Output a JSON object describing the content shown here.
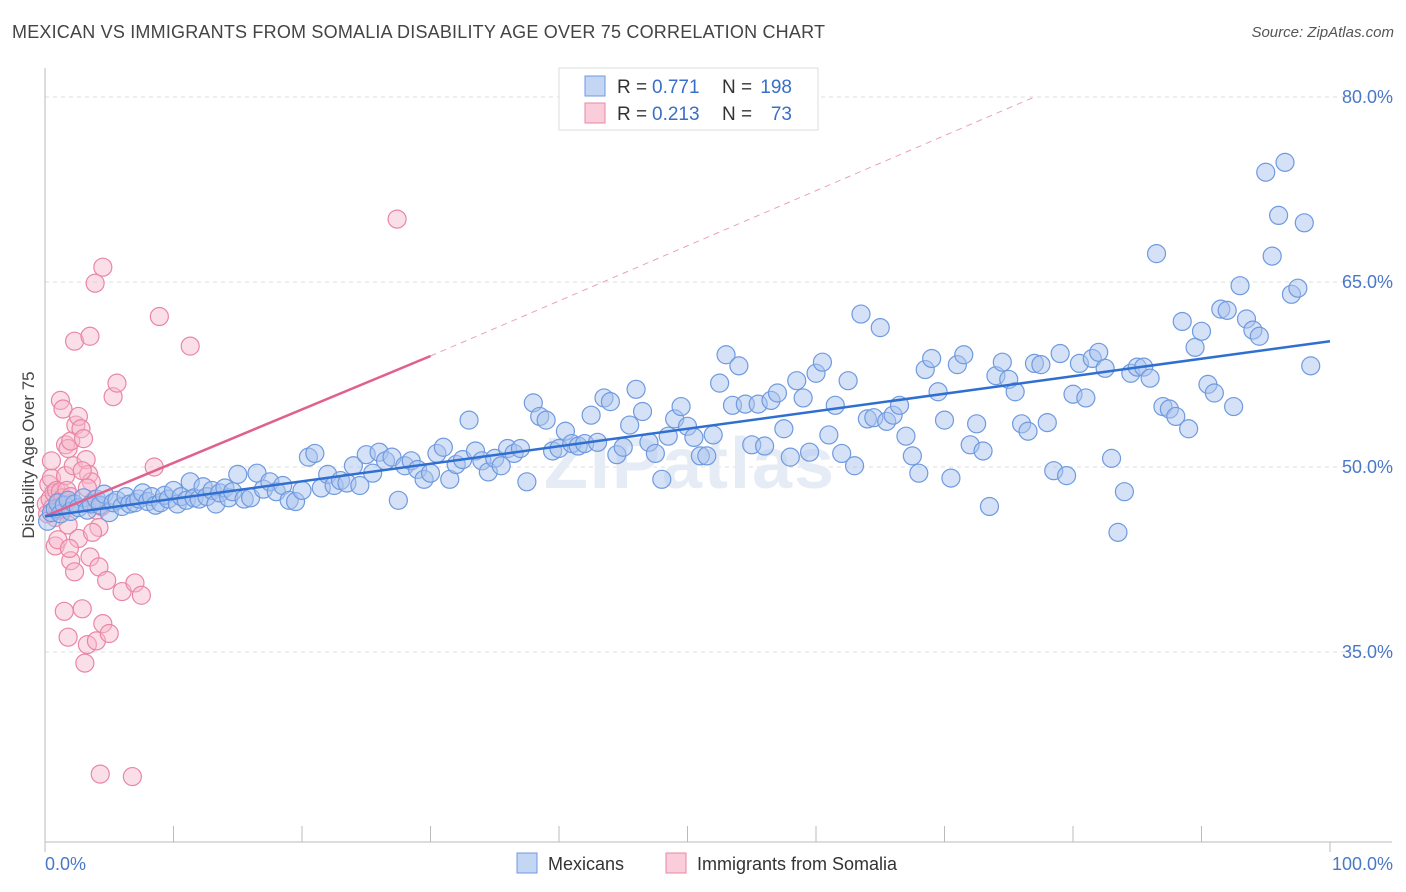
{
  "title": "MEXICAN VS IMMIGRANTS FROM SOMALIA DISABILITY AGE OVER 75 CORRELATION CHART",
  "source": "Source: ZipAtlas.com",
  "watermark": "ZIPatlas",
  "colors": {
    "mexicans_fill": "#aac4ee",
    "mexicans_stroke": "#6f9ae0",
    "mexicans_line": "#2f6fd0",
    "somalia_fill": "#f6b8cb",
    "somalia_stroke": "#ea86a5",
    "somalia_line": "#e06090",
    "axis_label": "#4a78c8",
    "grid": "#dddddd"
  },
  "legend": {
    "r_label": "R =",
    "n_label": "N =",
    "rows": [
      {
        "r": "0.771",
        "n": "198"
      },
      {
        "r": "0.213",
        "n": "73"
      }
    ]
  },
  "chart_data": {
    "type": "scatter",
    "title": "MEXICAN VS IMMIGRANTS FROM SOMALIA DISABILITY AGE OVER 75 CORRELATION CHART",
    "xlabel": "",
    "ylabel": "Disability Age Over 75",
    "xlim": [
      0,
      100
    ],
    "ylim": [
      20,
      84
    ],
    "x_tick_labels": [
      "0.0%",
      "100.0%"
    ],
    "y_ticks": [
      35,
      50,
      65,
      80
    ],
    "y_tick_labels": [
      "35.0%",
      "50.0%",
      "65.0%",
      "80.0%"
    ],
    "grid": true,
    "legend_position": "top-center",
    "series": [
      {
        "name": "Mexicans",
        "r": 0.771,
        "n": 198,
        "trend": {
          "x": [
            0,
            100
          ],
          "y": [
            46.0,
            60.2
          ]
        },
        "points": [
          [
            0.2,
            45.6
          ],
          [
            0.5,
            46.3
          ],
          [
            0.8,
            46.6
          ],
          [
            1.0,
            47.1
          ],
          [
            1.2,
            46.2
          ],
          [
            1.5,
            46.9
          ],
          [
            1.8,
            47.3
          ],
          [
            2.0,
            46.4
          ],
          [
            2.3,
            47.0
          ],
          [
            2.6,
            46.7
          ],
          [
            3.0,
            47.5
          ],
          [
            3.3,
            46.5
          ],
          [
            3.6,
            47.0
          ],
          [
            4.0,
            47.4
          ],
          [
            4.3,
            46.9
          ],
          [
            4.6,
            47.8
          ],
          [
            5.0,
            46.3
          ],
          [
            5.3,
            47.1
          ],
          [
            5.6,
            47.3
          ],
          [
            6.0,
            46.8
          ],
          [
            6.3,
            47.6
          ],
          [
            6.6,
            47.0
          ],
          [
            7.0,
            47.1
          ],
          [
            7.3,
            47.4
          ],
          [
            7.6,
            47.9
          ],
          [
            8.0,
            47.2
          ],
          [
            8.3,
            47.6
          ],
          [
            8.6,
            46.9
          ],
          [
            9.0,
            47.1
          ],
          [
            9.3,
            47.7
          ],
          [
            9.6,
            47.4
          ],
          [
            10.0,
            48.1
          ],
          [
            10.3,
            47.0
          ],
          [
            10.6,
            47.6
          ],
          [
            11.0,
            47.3
          ],
          [
            11.3,
            48.8
          ],
          [
            11.6,
            47.5
          ],
          [
            12.0,
            47.4
          ],
          [
            12.3,
            48.4
          ],
          [
            12.6,
            47.6
          ],
          [
            13.0,
            48.1
          ],
          [
            13.3,
            47.0
          ],
          [
            13.6,
            47.9
          ],
          [
            14.0,
            48.3
          ],
          [
            14.3,
            47.5
          ],
          [
            14.6,
            48.0
          ],
          [
            15.0,
            49.4
          ],
          [
            15.5,
            47.4
          ],
          [
            16.0,
            47.5
          ],
          [
            16.5,
            49.5
          ],
          [
            17.0,
            48.2
          ],
          [
            17.5,
            48.8
          ],
          [
            18.0,
            48.0
          ],
          [
            18.5,
            48.5
          ],
          [
            19.0,
            47.3
          ],
          [
            19.5,
            47.2
          ],
          [
            20.0,
            48.1
          ],
          [
            20.5,
            50.8
          ],
          [
            21.0,
            51.1
          ],
          [
            21.5,
            48.3
          ],
          [
            22.0,
            49.4
          ],
          [
            22.5,
            48.5
          ],
          [
            23.0,
            48.9
          ],
          [
            23.5,
            48.7
          ],
          [
            24.0,
            50.1
          ],
          [
            24.5,
            48.5
          ],
          [
            25.0,
            51.0
          ],
          [
            25.5,
            49.5
          ],
          [
            26.0,
            51.2
          ],
          [
            26.5,
            50.5
          ],
          [
            27.0,
            50.8
          ],
          [
            27.5,
            47.3
          ],
          [
            28.0,
            50.1
          ],
          [
            28.5,
            50.5
          ],
          [
            29.0,
            49.8
          ],
          [
            29.5,
            49.0
          ],
          [
            30.0,
            49.5
          ],
          [
            30.5,
            51.1
          ],
          [
            31.0,
            51.6
          ],
          [
            31.5,
            49.0
          ],
          [
            32.0,
            50.2
          ],
          [
            32.5,
            50.6
          ],
          [
            33.0,
            53.8
          ],
          [
            33.5,
            51.3
          ],
          [
            34.0,
            50.5
          ],
          [
            34.5,
            49.6
          ],
          [
            35.0,
            50.7
          ],
          [
            35.5,
            50.1
          ],
          [
            36.0,
            51.5
          ],
          [
            36.5,
            51.1
          ],
          [
            37.0,
            51.5
          ],
          [
            37.5,
            48.8
          ],
          [
            38.0,
            55.2
          ],
          [
            38.5,
            54.1
          ],
          [
            39.0,
            53.8
          ],
          [
            39.5,
            51.3
          ],
          [
            40.0,
            51.5
          ],
          [
            40.5,
            52.9
          ],
          [
            41.0,
            51.9
          ],
          [
            41.5,
            51.7
          ],
          [
            42.0,
            51.9
          ],
          [
            42.5,
            54.2
          ],
          [
            43.0,
            52.0
          ],
          [
            43.5,
            55.6
          ],
          [
            44.0,
            55.3
          ],
          [
            44.5,
            51.0
          ],
          [
            45.0,
            51.6
          ],
          [
            45.5,
            53.4
          ],
          [
            46.0,
            56.3
          ],
          [
            46.5,
            54.5
          ],
          [
            47.0,
            52.0
          ],
          [
            47.5,
            51.1
          ],
          [
            48.0,
            49.0
          ],
          [
            48.5,
            52.5
          ],
          [
            49.0,
            53.9
          ],
          [
            49.5,
            54.9
          ],
          [
            50.0,
            53.3
          ],
          [
            50.5,
            52.4
          ],
          [
            51.0,
            50.9
          ],
          [
            51.5,
            50.9
          ],
          [
            52.0,
            52.6
          ],
          [
            52.5,
            56.8
          ],
          [
            53.0,
            59.1
          ],
          [
            53.5,
            55.0
          ],
          [
            54.0,
            58.2
          ],
          [
            54.5,
            55.1
          ],
          [
            55.0,
            51.8
          ],
          [
            55.5,
            55.1
          ],
          [
            56.0,
            51.7
          ],
          [
            56.5,
            55.4
          ],
          [
            57.0,
            56.0
          ],
          [
            57.5,
            53.1
          ],
          [
            58.0,
            50.8
          ],
          [
            58.5,
            57.0
          ],
          [
            59.0,
            55.6
          ],
          [
            59.5,
            51.2
          ],
          [
            60.0,
            57.6
          ],
          [
            60.5,
            58.5
          ],
          [
            61.0,
            52.6
          ],
          [
            61.5,
            55.0
          ],
          [
            62.0,
            51.1
          ],
          [
            62.5,
            57.0
          ],
          [
            63.0,
            50.1
          ],
          [
            63.5,
            62.4
          ],
          [
            64.0,
            53.9
          ],
          [
            64.5,
            54.0
          ],
          [
            65.0,
            61.3
          ],
          [
            65.5,
            53.7
          ],
          [
            66.0,
            54.2
          ],
          [
            66.5,
            55.0
          ],
          [
            67.0,
            52.5
          ],
          [
            67.5,
            50.9
          ],
          [
            68.0,
            49.5
          ],
          [
            68.5,
            57.9
          ],
          [
            69.0,
            58.8
          ],
          [
            69.5,
            56.1
          ],
          [
            70.0,
            53.8
          ],
          [
            70.5,
            49.1
          ],
          [
            71.0,
            58.3
          ],
          [
            71.5,
            59.1
          ],
          [
            72.0,
            51.8
          ],
          [
            72.5,
            53.5
          ],
          [
            73.0,
            51.3
          ],
          [
            73.5,
            46.8
          ],
          [
            74.0,
            57.4
          ],
          [
            74.5,
            58.5
          ],
          [
            75.0,
            57.1
          ],
          [
            75.5,
            56.1
          ],
          [
            76.0,
            53.5
          ],
          [
            76.5,
            52.9
          ],
          [
            77.0,
            58.4
          ],
          [
            77.5,
            58.3
          ],
          [
            78.0,
            53.6
          ],
          [
            78.5,
            49.7
          ],
          [
            79.0,
            59.2
          ],
          [
            79.5,
            49.3
          ],
          [
            80.0,
            55.9
          ],
          [
            80.5,
            58.4
          ],
          [
            81.0,
            55.6
          ],
          [
            81.5,
            58.8
          ],
          [
            82.0,
            59.3
          ],
          [
            82.5,
            58.0
          ],
          [
            83.0,
            50.7
          ],
          [
            83.5,
            44.7
          ],
          [
            84.0,
            48.0
          ],
          [
            84.5,
            57.6
          ],
          [
            85.0,
            58.1
          ],
          [
            85.5,
            58.1
          ],
          [
            86.0,
            57.2
          ],
          [
            86.5,
            67.3
          ],
          [
            87.0,
            54.9
          ],
          [
            87.5,
            54.7
          ],
          [
            88.0,
            54.1
          ],
          [
            88.5,
            61.8
          ],
          [
            89.0,
            53.1
          ],
          [
            89.5,
            59.7
          ],
          [
            90.0,
            61.0
          ],
          [
            90.5,
            56.7
          ],
          [
            91.0,
            56.0
          ],
          [
            91.5,
            62.8
          ],
          [
            92.0,
            62.7
          ],
          [
            92.5,
            54.9
          ],
          [
            93.0,
            64.7
          ],
          [
            93.5,
            62.0
          ],
          [
            94.0,
            61.1
          ],
          [
            94.5,
            60.6
          ],
          [
            95.0,
            73.9
          ],
          [
            95.5,
            67.1
          ],
          [
            96.0,
            70.4
          ],
          [
            96.5,
            74.7
          ],
          [
            97.0,
            64.0
          ],
          [
            97.5,
            64.5
          ],
          [
            98.0,
            69.8
          ],
          [
            98.5,
            58.2
          ]
        ]
      },
      {
        "name": "Immigrants from Somalia",
        "r": 0.213,
        "n": 73,
        "trend": {
          "x": [
            0,
            30
          ],
          "y": [
            46.0,
            59.0
          ]
        },
        "trend_dashed": {
          "x": [
            30,
            77
          ],
          "y": [
            59.0,
            80.0
          ]
        },
        "points": [
          [
            0.1,
            47.0
          ],
          [
            0.2,
            46.2
          ],
          [
            0.3,
            48.6
          ],
          [
            0.4,
            47.4
          ],
          [
            0.5,
            49.1
          ],
          [
            0.6,
            46.7
          ],
          [
            0.7,
            47.9
          ],
          [
            0.8,
            45.9
          ],
          [
            0.9,
            48.1
          ],
          [
            1.0,
            46.5
          ],
          [
            1.1,
            47.2
          ],
          [
            1.2,
            48.0
          ],
          [
            1.3,
            46.9
          ],
          [
            1.4,
            47.5
          ],
          [
            1.5,
            46.6
          ],
          [
            1.6,
            49.3
          ],
          [
            1.7,
            48.1
          ],
          [
            1.8,
            45.3
          ],
          [
            1.9,
            47.0
          ],
          [
            2.0,
            47.6
          ],
          [
            0.5,
            50.5
          ],
          [
            0.8,
            43.6
          ],
          [
            1.0,
            44.1
          ],
          [
            1.2,
            55.4
          ],
          [
            1.4,
            54.7
          ],
          [
            1.6,
            51.8
          ],
          [
            1.8,
            51.5
          ],
          [
            2.0,
            52.1
          ],
          [
            2.2,
            50.1
          ],
          [
            2.4,
            53.4
          ],
          [
            2.6,
            54.1
          ],
          [
            2.8,
            53.1
          ],
          [
            3.0,
            52.3
          ],
          [
            3.2,
            50.6
          ],
          [
            3.4,
            49.4
          ],
          [
            3.6,
            48.8
          ],
          [
            3.8,
            47.3
          ],
          [
            4.0,
            46.5
          ],
          [
            4.2,
            45.1
          ],
          [
            4.4,
            46.8
          ],
          [
            1.5,
            38.3
          ],
          [
            1.8,
            36.2
          ],
          [
            2.0,
            42.4
          ],
          [
            2.3,
            41.5
          ],
          [
            2.6,
            44.2
          ],
          [
            2.9,
            38.5
          ],
          [
            3.1,
            34.1
          ],
          [
            3.3,
            35.6
          ],
          [
            3.5,
            42.7
          ],
          [
            3.7,
            44.7
          ],
          [
            4.0,
            35.9
          ],
          [
            4.2,
            41.9
          ],
          [
            4.5,
            37.3
          ],
          [
            4.8,
            40.8
          ],
          [
            5.0,
            36.5
          ],
          [
            5.3,
            55.7
          ],
          [
            6.0,
            39.9
          ],
          [
            7.0,
            40.6
          ],
          [
            7.5,
            39.6
          ],
          [
            8.5,
            50.0
          ],
          [
            2.3,
            60.2
          ],
          [
            3.5,
            60.6
          ],
          [
            3.9,
            64.9
          ],
          [
            4.5,
            66.2
          ],
          [
            8.9,
            62.2
          ],
          [
            11.3,
            59.8
          ],
          [
            5.6,
            56.8
          ],
          [
            27.4,
            70.1
          ],
          [
            4.3,
            25.1
          ],
          [
            6.8,
            24.9
          ],
          [
            2.9,
            49.7
          ],
          [
            1.9,
            43.4
          ],
          [
            3.3,
            48.3
          ]
        ]
      }
    ]
  }
}
